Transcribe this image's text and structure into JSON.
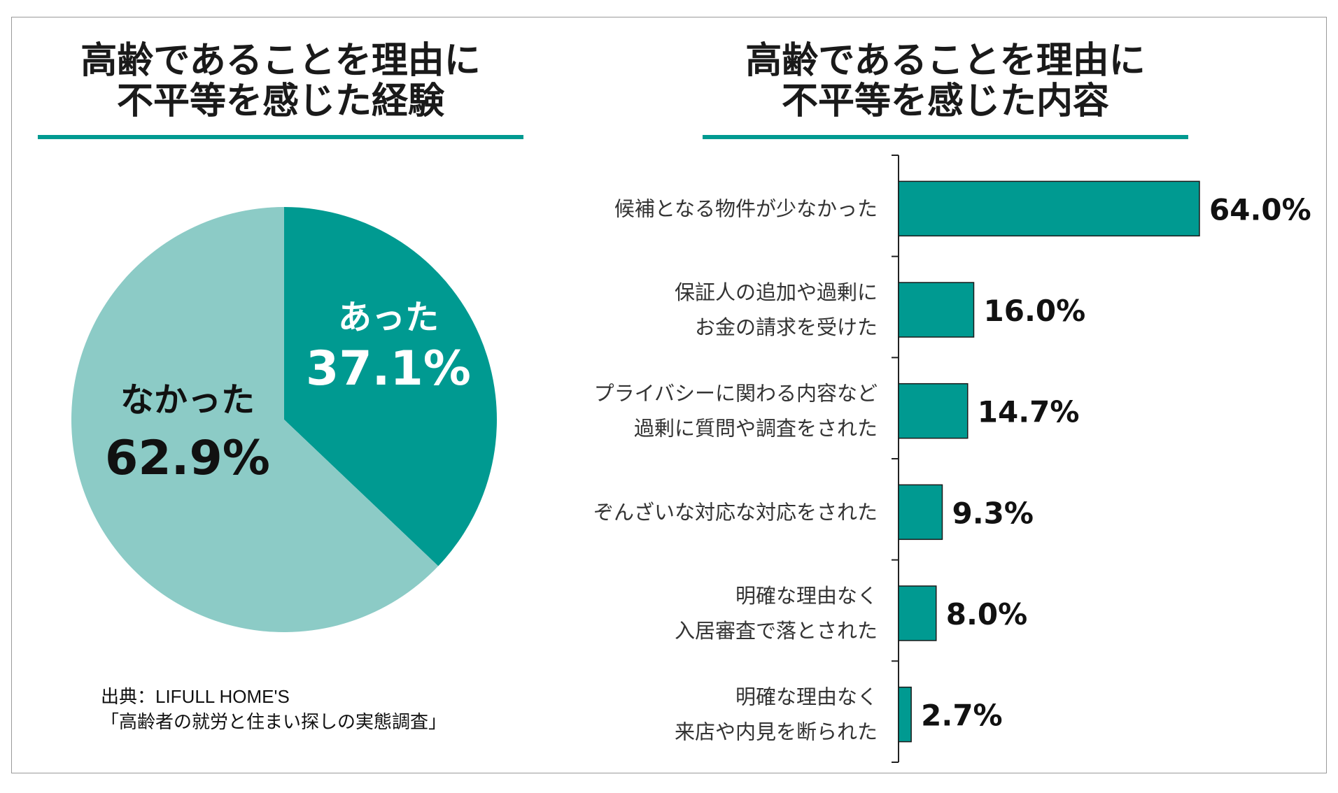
{
  "left": {
    "title_line1": "高齢であることを理由に",
    "title_line2": "不平等を感じた経験"
  },
  "right": {
    "title_line1": "高齢であることを理由に",
    "title_line2": "不平等を感じた内容"
  },
  "source": {
    "line1": "出典：LIFULL HOME'S",
    "line2": "「高齢者の就労と住まい探しの実態調査」"
  },
  "colors": {
    "accent": "#009a91",
    "accent_light": "#8ccbc6",
    "rule": "#009a91"
  },
  "chart_data": [
    {
      "type": "pie",
      "title": "高齢であることを理由に 不平等を感じた経験",
      "slices": [
        {
          "label": "あった",
          "value": 37.1,
          "value_label": "37.1%",
          "color": "#009a91",
          "text_color": "#ffffff"
        },
        {
          "label": "なかった",
          "value": 62.9,
          "value_label": "62.9%",
          "color": "#8ccbc6",
          "text_color": "#111111"
        }
      ]
    },
    {
      "type": "bar",
      "orientation": "horizontal",
      "title": "高齢であることを理由に 不平等を感じた内容",
      "bar_color": "#009a91",
      "categories": [
        [
          "候補となる物件が少なかった"
        ],
        [
          "保証人の追加や過剰に",
          "お金の請求を受けた"
        ],
        [
          "プライバシーに関わる内容など",
          "過剰に質問や調査をされた"
        ],
        [
          "ぞんざいな対応な対応をされた"
        ],
        [
          "明確な理由なく",
          "入居審査で落とされた"
        ],
        [
          "明確な理由なく",
          "来店や内見を断られた"
        ]
      ],
      "values": [
        64.0,
        16.0,
        14.7,
        9.3,
        8.0,
        2.7
      ],
      "value_labels": [
        "64.0%",
        "16.0%",
        "14.7%",
        "9.3%",
        "8.0%",
        "2.7%"
      ],
      "xlim": [
        0,
        64.0
      ]
    }
  ]
}
